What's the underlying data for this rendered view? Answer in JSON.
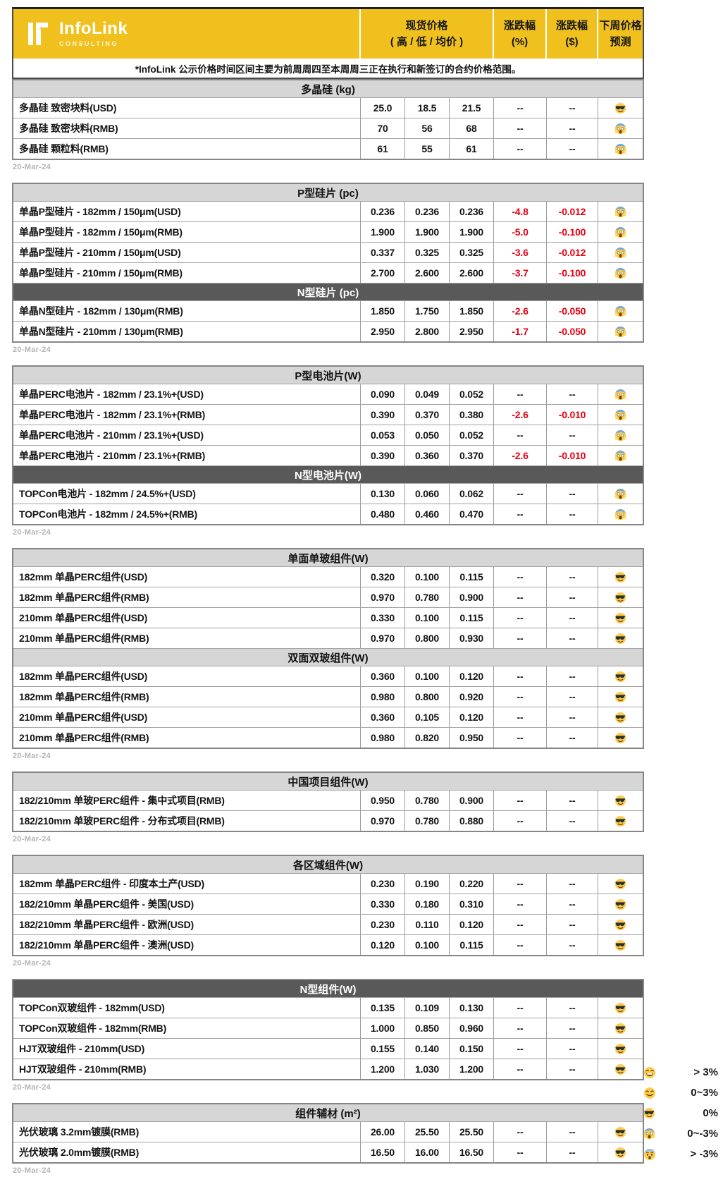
{
  "brand": {
    "name": "InfoLink",
    "tagline": "CONSULTING"
  },
  "columns": {
    "spot_price_line1": "现货价格",
    "spot_price_line2": "( 高 / 低 / 均价 )",
    "change_pct_line1": "涨跌幅",
    "change_pct_line2": "(%)",
    "change_usd_line1": "涨跌幅",
    "change_usd_line2": "($)",
    "forecast_line1": "下周价格",
    "forecast_line2": "预测"
  },
  "note": "*InfoLink 公示价格时间区间主要为前周周四至本周周三正在执行和新签订的合约价格范围。",
  "date_label": "20-Mar-24",
  "colors": {
    "brand_yellow": "#F0C11E",
    "dark_header": "#595959",
    "light_header": "#D6D6D6",
    "negative_red": "#E60012"
  },
  "blocks": [
    {
      "sections": [
        {
          "title": "多晶硅 (kg)",
          "tone": "light",
          "rows": [
            {
              "label": "多晶硅 致密块料(USD)",
              "high": "25.0",
              "low": "18.5",
              "avg": "21.5",
              "pct": "--",
              "usd": "--",
              "forecast": "cool"
            },
            {
              "label": "多晶硅 致密块料(RMB)",
              "high": "70",
              "low": "56",
              "avg": "68",
              "pct": "--",
              "usd": "--",
              "forecast": "scream"
            },
            {
              "label": "多晶硅 颗粒料(RMB)",
              "high": "61",
              "low": "55",
              "avg": "61",
              "pct": "--",
              "usd": "--",
              "forecast": "scream"
            }
          ]
        }
      ]
    },
    {
      "sections": [
        {
          "title": "P型硅片 (pc)",
          "tone": "light",
          "rows": [
            {
              "label": "单晶P型硅片 - 182mm / 150μm(USD)",
              "high": "0.236",
              "low": "0.236",
              "avg": "0.236",
              "pct": "-4.8",
              "usd": "-0.012",
              "forecast": "scream"
            },
            {
              "label": "单晶P型硅片 - 182mm / 150μm(RMB)",
              "high": "1.900",
              "low": "1.900",
              "avg": "1.900",
              "pct": "-5.0",
              "usd": "-0.100",
              "forecast": "scream"
            },
            {
              "label": "单晶P型硅片 - 210mm / 150μm(USD)",
              "high": "0.337",
              "low": "0.325",
              "avg": "0.325",
              "pct": "-3.6",
              "usd": "-0.012",
              "forecast": "scream"
            },
            {
              "label": "单晶P型硅片 - 210mm / 150μm(RMB)",
              "high": "2.700",
              "low": "2.600",
              "avg": "2.600",
              "pct": "-3.7",
              "usd": "-0.100",
              "forecast": "scream"
            }
          ]
        },
        {
          "title": "N型硅片 (pc)",
          "tone": "dark",
          "rows": [
            {
              "label": "单晶N型硅片 - 182mm / 130μm(RMB)",
              "high": "1.850",
              "low": "1.750",
              "avg": "1.850",
              "pct": "-2.6",
              "usd": "-0.050",
              "forecast": "scream"
            },
            {
              "label": "单晶N型硅片 - 210mm / 130μm(RMB)",
              "high": "2.950",
              "low": "2.800",
              "avg": "2.950",
              "pct": "-1.7",
              "usd": "-0.050",
              "forecast": "scream"
            }
          ]
        }
      ]
    },
    {
      "sections": [
        {
          "title": "P型电池片(W)",
          "tone": "light",
          "rows": [
            {
              "label": "单晶PERC电池片 - 182mm / 23.1%+(USD)",
              "high": "0.090",
              "low": "0.049",
              "avg": "0.052",
              "pct": "--",
              "usd": "--",
              "forecast": "scream"
            },
            {
              "label": "单晶PERC电池片 - 182mm / 23.1%+(RMB)",
              "high": "0.390",
              "low": "0.370",
              "avg": "0.380",
              "pct": "-2.6",
              "usd": "-0.010",
              "forecast": "scream"
            },
            {
              "label": "单晶PERC电池片 - 210mm / 23.1%+(USD)",
              "high": "0.053",
              "low": "0.050",
              "avg": "0.052",
              "pct": "--",
              "usd": "--",
              "forecast": "scream"
            },
            {
              "label": "单晶PERC电池片 - 210mm / 23.1%+(RMB)",
              "high": "0.390",
              "low": "0.360",
              "avg": "0.370",
              "pct": "-2.6",
              "usd": "-0.010",
              "forecast": "scream"
            }
          ]
        },
        {
          "title": "N型电池片(W)",
          "tone": "dark",
          "rows": [
            {
              "label": "TOPCon电池片 - 182mm / 24.5%+(USD)",
              "high": "0.130",
              "low": "0.060",
              "avg": "0.062",
              "pct": "--",
              "usd": "--",
              "forecast": "scream"
            },
            {
              "label": "TOPCon电池片 - 182mm / 24.5%+(RMB)",
              "high": "0.480",
              "low": "0.460",
              "avg": "0.470",
              "pct": "--",
              "usd": "--",
              "forecast": "scream"
            }
          ]
        }
      ]
    },
    {
      "sections": [
        {
          "title": "单面单玻组件(W)",
          "tone": "light",
          "rows": [
            {
              "label": "182mm 单晶PERC组件(USD)",
              "high": "0.320",
              "low": "0.100",
              "avg": "0.115",
              "pct": "--",
              "usd": "--",
              "forecast": "cool"
            },
            {
              "label": "182mm 单晶PERC组件(RMB)",
              "high": "0.970",
              "low": "0.780",
              "avg": "0.900",
              "pct": "--",
              "usd": "--",
              "forecast": "cool"
            },
            {
              "label": "210mm 单晶PERC组件(USD)",
              "high": "0.330",
              "low": "0.100",
              "avg": "0.115",
              "pct": "--",
              "usd": "--",
              "forecast": "cool"
            },
            {
              "label": "210mm 单晶PERC组件(RMB)",
              "high": "0.970",
              "low": "0.800",
              "avg": "0.930",
              "pct": "--",
              "usd": "--",
              "forecast": "cool"
            }
          ]
        },
        {
          "title": "双面双玻组件(W)",
          "tone": "light",
          "rows": [
            {
              "label": "182mm 单晶PERC组件(USD)",
              "high": "0.360",
              "low": "0.100",
              "avg": "0.120",
              "pct": "--",
              "usd": "--",
              "forecast": "cool"
            },
            {
              "label": "182mm 单晶PERC组件(RMB)",
              "high": "0.980",
              "low": "0.800",
              "avg": "0.920",
              "pct": "--",
              "usd": "--",
              "forecast": "cool"
            },
            {
              "label": "210mm 单晶PERC组件(USD)",
              "high": "0.360",
              "low": "0.105",
              "avg": "0.120",
              "pct": "--",
              "usd": "--",
              "forecast": "cool"
            },
            {
              "label": "210mm 单晶PERC组件(RMB)",
              "high": "0.980",
              "low": "0.820",
              "avg": "0.950",
              "pct": "--",
              "usd": "--",
              "forecast": "cool"
            }
          ]
        }
      ]
    },
    {
      "sections": [
        {
          "title": "中国项目组件(W)",
          "tone": "light",
          "rows": [
            {
              "label": "182/210mm 单玻PERC组件 - 集中式项目(RMB)",
              "high": "0.950",
              "low": "0.780",
              "avg": "0.900",
              "pct": "--",
              "usd": "--",
              "forecast": "cool"
            },
            {
              "label": "182/210mm 单玻PERC组件 - 分布式项目(RMB)",
              "high": "0.970",
              "low": "0.780",
              "avg": "0.880",
              "pct": "--",
              "usd": "--",
              "forecast": "cool"
            }
          ]
        }
      ]
    },
    {
      "sections": [
        {
          "title": "各区域组件(W)",
          "tone": "light",
          "rows": [
            {
              "label": "182mm 单晶PERC组件 - 印度本土产(USD)",
              "high": "0.230",
              "low": "0.190",
              "avg": "0.220",
              "pct": "--",
              "usd": "--",
              "forecast": "cool"
            },
            {
              "label": "182/210mm 单晶PERC组件 - 美国(USD)",
              "high": "0.330",
              "low": "0.180",
              "avg": "0.310",
              "pct": "--",
              "usd": "--",
              "forecast": "cool"
            },
            {
              "label": "182/210mm 单晶PERC组件 - 欧洲(USD)",
              "high": "0.230",
              "low": "0.110",
              "avg": "0.120",
              "pct": "--",
              "usd": "--",
              "forecast": "cool"
            },
            {
              "label": "182/210mm 单晶PERC组件 - 澳洲(USD)",
              "high": "0.120",
              "low": "0.100",
              "avg": "0.115",
              "pct": "--",
              "usd": "--",
              "forecast": "cool"
            }
          ]
        }
      ]
    },
    {
      "sections": [
        {
          "title": "N型组件(W)",
          "tone": "dark",
          "rows": [
            {
              "label": "TOPCon双玻组件 - 182mm(USD)",
              "high": "0.135",
              "low": "0.109",
              "avg": "0.130",
              "pct": "--",
              "usd": "--",
              "forecast": "cool"
            },
            {
              "label": "TOPCon双玻组件 - 182mm(RMB)",
              "high": "1.000",
              "low": "0.850",
              "avg": "0.960",
              "pct": "--",
              "usd": "--",
              "forecast": "cool"
            },
            {
              "label": "HJT双玻组件 - 210mm(USD)",
              "high": "0.155",
              "low": "0.140",
              "avg": "0.150",
              "pct": "--",
              "usd": "--",
              "forecast": "cool"
            },
            {
              "label": "HJT双玻组件 - 210mm(RMB)",
              "high": "1.200",
              "low": "1.030",
              "avg": "1.200",
              "pct": "--",
              "usd": "--",
              "forecast": "cool"
            }
          ]
        }
      ]
    },
    {
      "sections": [
        {
          "title": "组件辅材 (m²)",
          "tone": "light",
          "rows": [
            {
              "label": "光伏玻璃 3.2mm镀膜(RMB)",
              "high": "26.00",
              "low": "25.50",
              "avg": "25.50",
              "pct": "--",
              "usd": "--",
              "forecast": "cool"
            },
            {
              "label": "光伏玻璃 2.0mm镀膜(RMB)",
              "high": "16.50",
              "low": "16.00",
              "avg": "16.50",
              "pct": "--",
              "usd": "--",
              "forecast": "cool"
            }
          ]
        }
      ]
    }
  ],
  "legend": [
    {
      "emoji": "grin",
      "label": "> 3%"
    },
    {
      "emoji": "smile",
      "label": "0~3%"
    },
    {
      "emoji": "cool",
      "label": "0%"
    },
    {
      "emoji": "scream",
      "label": "0~-3%"
    },
    {
      "emoji": "fear",
      "label": "> -3%"
    }
  ]
}
